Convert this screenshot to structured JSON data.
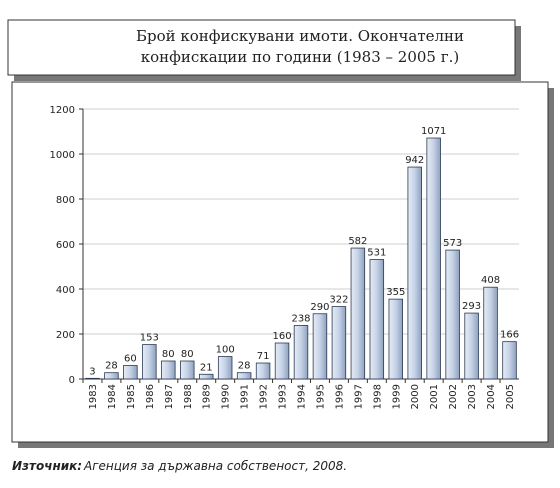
{
  "chart_data": {
    "type": "bar",
    "title": "Брой конфискувани имоти. Окончателни",
    "subtitle": "конфискации по години (1983 – 2005 г.)",
    "categories": [
      "1983",
      "1984",
      "1985",
      "1986",
      "1987",
      "1988",
      "1989",
      "1990",
      "1991",
      "1992",
      "1993",
      "1994",
      "1995",
      "1996",
      "1997",
      "1998",
      "1999",
      "2000",
      "2001",
      "2002",
      "2003",
      "2004",
      "2005"
    ],
    "values": [
      3,
      28,
      60,
      153,
      80,
      80,
      21,
      100,
      28,
      71,
      160,
      238,
      290,
      322,
      582,
      531,
      355,
      942,
      1071,
      573,
      293,
      408,
      166
    ],
    "color": "#c5d2e6",
    "ylim": [
      0,
      1200
    ],
    "yticks": [
      0,
      200,
      400,
      600,
      800,
      1000,
      1200
    ],
    "grid": true,
    "source_label": "Източник:",
    "source_text": "Агенция за държавна собственост, 2008."
  }
}
